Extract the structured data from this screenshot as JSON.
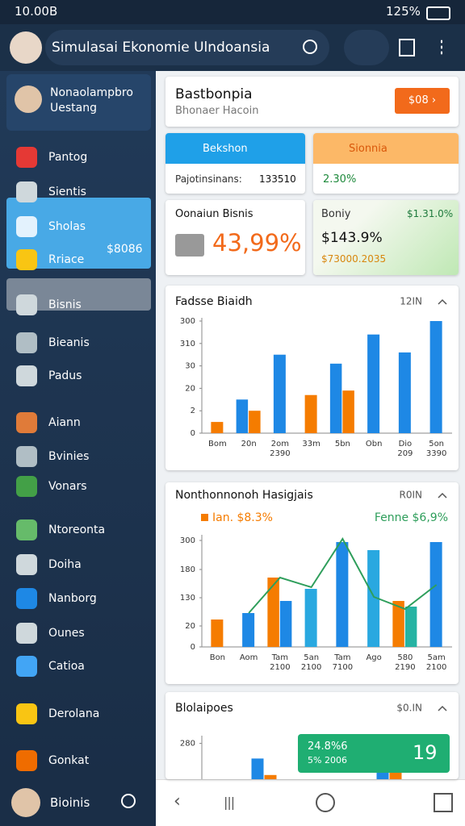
{
  "status_bar": {
    "time": "10.00B",
    "battery": "125%"
  },
  "app_bar": {
    "title": "Simulasai Ekonomie Ulndoansia"
  },
  "sidebar": {
    "profile": [
      "Nonaolampbro",
      "Uestang"
    ],
    "items": [
      "Pantog",
      "Sientis",
      "Sholas",
      "Rriace",
      "Bisnis",
      "Bieanis",
      "Padus",
      "Aiann",
      "Bvinies",
      "Vonars",
      "Ntoreonta",
      "Doiha",
      "Nanborg",
      "Ounes",
      "Catioa",
      "Derolana",
      "Gonkat"
    ],
    "item_value": "$8086",
    "bottom": "Bioinis"
  },
  "cards": {
    "header": {
      "title": "Bastbonpia",
      "subtitle": "Bhonaer Hacoin",
      "button": "$08"
    },
    "blue": {
      "title": "Bekshon",
      "label": "Pajotinsinans:",
      "value": "133510"
    },
    "orange": {
      "title": "Sionnia",
      "value": "2.30%"
    },
    "online": {
      "title": "Oonaiun Bisnis",
      "value": "43,99%"
    },
    "green": {
      "title": "Boniy",
      "badge": "$1.31.0%",
      "value": "$143.9%",
      "sub": "$73000.2035"
    },
    "callout": {
      "line1": "24.8%6",
      "line2": "5% 2006",
      "big": "19"
    }
  },
  "chart_data": [
    {
      "type": "bar",
      "title": "Fadsse Biaidh",
      "period": "12IN",
      "ylim": [
        0,
        50
      ],
      "yticks": [
        0,
        {
          "value": 10,
          "label": "2"
        },
        20,
        30,
        {
          "value": 40,
          "label": "310"
        },
        {
          "value": 50,
          "label": "300"
        }
      ],
      "categories": [
        "Bom",
        "20n",
        "2om\n2390",
        "33m",
        "5bn",
        "Obn",
        "Dio\n209",
        "5on\n3390"
      ],
      "series": [
        {
          "color": "#1e88e5",
          "values": [
            null,
            15,
            35,
            null,
            31,
            44,
            36,
            50
          ]
        },
        {
          "color": "#f57c00",
          "values": [
            5,
            10,
            null,
            17,
            19,
            null,
            null,
            null
          ]
        }
      ]
    },
    {
      "type": "bar",
      "title": "Nonthonnonoh Hasigjais",
      "period": "R0IN",
      "ylim": [
        0,
        135
      ],
      "yticks": [
        0,
        {
          "value": 26,
          "label": "20"
        },
        {
          "value": 61,
          "label": "130"
        },
        {
          "value": 96,
          "label": "180"
        },
        {
          "value": 132,
          "label": "300"
        }
      ],
      "annotations": [
        {
          "text": "Ian. $8.3%",
          "color": "#f57c00"
        },
        {
          "text": "Fenne $6,9%",
          "color": "#2e9e5b"
        }
      ],
      "categories": [
        "Bon",
        "Aom",
        "Tam\n2100",
        "5an\n2100",
        "Tam\n7100",
        "Ago",
        "580\n2190",
        "5am\n2100"
      ],
      "series": [
        {
          "color": "#f57c00",
          "values": [
            34,
            null,
            86,
            null,
            null,
            null,
            57,
            null
          ]
        },
        {
          "color": "#1e88e5",
          "values": [
            null,
            42,
            57,
            null,
            130,
            null,
            null,
            130
          ]
        },
        {
          "color": "#29a8e0",
          "values": [
            null,
            null,
            null,
            72,
            null,
            120,
            null,
            null
          ]
        },
        {
          "color": "#26b3a3",
          "values": [
            null,
            null,
            null,
            null,
            null,
            null,
            50,
            null
          ]
        },
        {
          "type": "line",
          "color": "#2e9e5b",
          "values": [
            null,
            42,
            86,
            74,
            134,
            62,
            47,
            77
          ]
        }
      ]
    },
    {
      "type": "bar",
      "title": "Blolaipoes",
      "period": "$0.IN",
      "ylim": [
        0,
        300
      ],
      "yticks": [
        280
      ],
      "categories": [
        null,
        null
      ],
      "series": [
        {
          "color": "#1e88e5",
          "values": [
            213,
            167
          ]
        },
        {
          "color": "#f57c00",
          "values": [
            140,
            223
          ]
        }
      ]
    }
  ]
}
